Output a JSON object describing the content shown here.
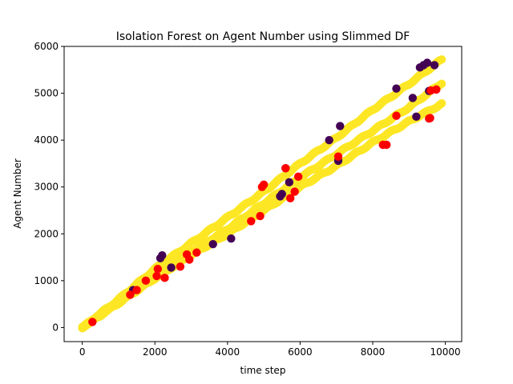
{
  "chart_data": {
    "type": "scatter",
    "title": "Isolation Forest on Agent Number using Slimmed DF",
    "xlabel": "time step",
    "ylabel": "Agent Number",
    "xlim": [
      -500,
      10450
    ],
    "ylim": [
      -300,
      6000
    ],
    "xticks": [
      0,
      2000,
      4000,
      6000,
      8000,
      10000
    ],
    "yticks": [
      0,
      1000,
      2000,
      3000,
      4000,
      5000,
      6000
    ],
    "grid": false,
    "legend": "none",
    "colors": {
      "normal": "#fde725",
      "anomaly_cluster": "#440154",
      "outlier": "#ff0000"
    },
    "bands": [
      {
        "x": [
          0,
          1000,
          2000,
          3000,
          4000,
          5000,
          6000,
          7000,
          8000,
          9000,
          9900
        ],
        "y": [
          0,
          600,
          1250,
          1800,
          2350,
          2900,
          3500,
          4050,
          4650,
          5200,
          5720
        ]
      },
      {
        "x": [
          0,
          1000,
          2000,
          3000,
          4000,
          5000,
          6000,
          7000,
          8000,
          9000,
          9900
        ],
        "y": [
          0,
          550,
          1100,
          1620,
          2100,
          2650,
          3200,
          3700,
          4200,
          4700,
          5220
        ]
      },
      {
        "x": [
          0,
          1000,
          2000,
          3000,
          4000,
          5000,
          6000,
          7000,
          8000,
          9000,
          9900
        ],
        "y": [
          0,
          520,
          1050,
          1550,
          2000,
          2500,
          3000,
          3450,
          3950,
          4400,
          4770
        ]
      }
    ],
    "anomaly_cluster_points": [
      [
        1400,
        800
      ],
      [
        2150,
        1480
      ],
      [
        2200,
        1540
      ],
      [
        2450,
        1280
      ],
      [
        3600,
        1780
      ],
      [
        4100,
        1900
      ],
      [
        5450,
        2800
      ],
      [
        5500,
        2850
      ],
      [
        5600,
        3400
      ],
      [
        5700,
        3100
      ],
      [
        6800,
        4000
      ],
      [
        7100,
        4300
      ],
      [
        7050,
        3560
      ],
      [
        8650,
        5100
      ],
      [
        9100,
        4900
      ],
      [
        9300,
        5550
      ],
      [
        9400,
        5600
      ],
      [
        9500,
        5650
      ],
      [
        9550,
        5050
      ],
      [
        9700,
        5600
      ],
      [
        9200,
        4500
      ]
    ],
    "outlier_points": [
      [
        280,
        120
      ],
      [
        1320,
        700
      ],
      [
        1500,
        800
      ],
      [
        1750,
        1000
      ],
      [
        2050,
        1100
      ],
      [
        2080,
        1250
      ],
      [
        2270,
        1060
      ],
      [
        2700,
        1300
      ],
      [
        2880,
        1560
      ],
      [
        2950,
        1450
      ],
      [
        3150,
        1600
      ],
      [
        4650,
        2270
      ],
      [
        4900,
        2380
      ],
      [
        4950,
        3000
      ],
      [
        5000,
        3050
      ],
      [
        5600,
        3400
      ],
      [
        5730,
        2760
      ],
      [
        5850,
        2900
      ],
      [
        5950,
        3220
      ],
      [
        7050,
        3650
      ],
      [
        8280,
        3900
      ],
      [
        8380,
        3900
      ],
      [
        8650,
        4520
      ],
      [
        9550,
        4460
      ],
      [
        9580,
        4470
      ],
      [
        9600,
        5060
      ],
      [
        9750,
        5080
      ]
    ]
  }
}
